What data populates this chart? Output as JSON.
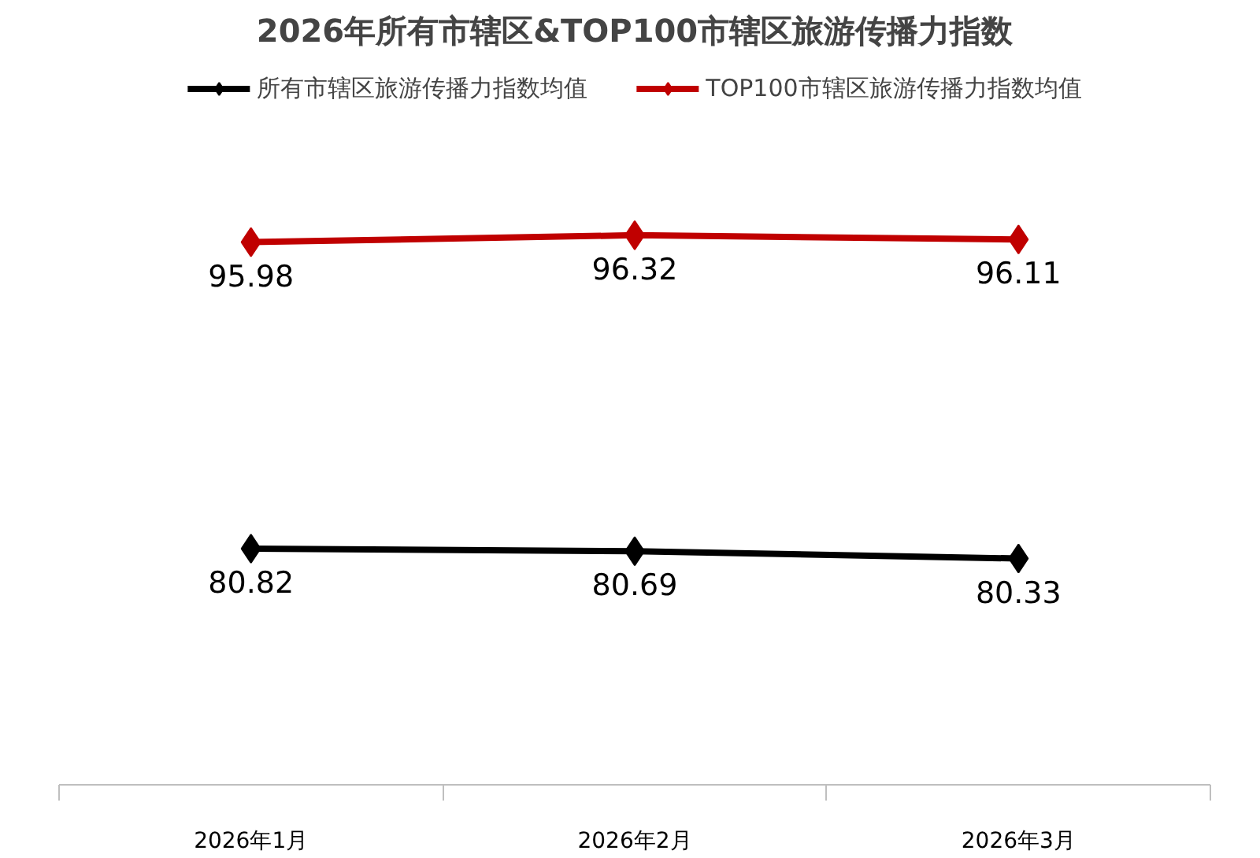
{
  "chart_data": {
    "type": "line",
    "title": "2026年所有市辖区&TOP100市辖区旅游传播力指数",
    "categories": [
      "2026年1月",
      "2026年2月",
      "2026年3月"
    ],
    "series": [
      {
        "name": "所有市辖区旅游传播力指数均值",
        "color": "#000000",
        "values": [
          80.82,
          80.69,
          80.33
        ]
      },
      {
        "name": "TOP100市辖区旅游传播力指数均值",
        "color": "#c00000",
        "values": [
          95.98,
          96.32,
          96.11
        ]
      }
    ],
    "data_labels": true,
    "marker": "diamond",
    "legend": "top",
    "grid": false,
    "line_style": "solid"
  }
}
